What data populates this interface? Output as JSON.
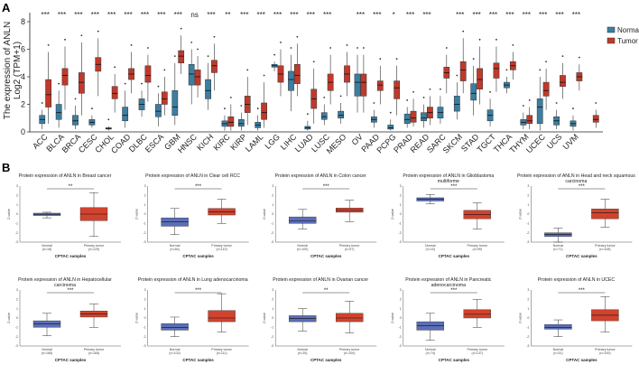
{
  "chart_data": [
    {
      "panel": "A",
      "type": "boxplot",
      "ylabel_line1": "The expression of ANLN",
      "ylabel_line2": "Log2 (TPM+1)",
      "ylim": [
        0,
        8
      ],
      "yticks": [
        0,
        2,
        4,
        6,
        8
      ],
      "legend": {
        "title": "",
        "position": "right",
        "items": [
          {
            "name": "Normal",
            "color": "#3b7ea1"
          },
          {
            "name": "Tumor",
            "color": "#c0392b"
          }
        ]
      },
      "groups": [
        {
          "cancer": "ACC",
          "sig": "***",
          "normal": [
            0.2,
            0.6,
            0.9,
            1.2,
            1.6
          ],
          "tumor": [
            0.6,
            1.8,
            2.7,
            3.8,
            5.8
          ]
        },
        {
          "cancer": "BLCA",
          "sig": "***",
          "normal": [
            0.3,
            0.9,
            1.4,
            2.0,
            3.0
          ],
          "tumor": [
            1.6,
            3.4,
            4.1,
            4.6,
            6.2
          ]
        },
        {
          "cancer": "BRCA",
          "sig": "***",
          "normal": [
            0.2,
            0.5,
            0.8,
            1.2,
            1.9
          ],
          "tumor": [
            1.2,
            2.8,
            3.6,
            4.3,
            6.5
          ]
        },
        {
          "cancer": "CESC",
          "sig": "***",
          "normal": [
            0.3,
            0.5,
            0.7,
            0.9,
            1.2
          ],
          "tumor": [
            2.6,
            4.4,
            4.9,
            5.4,
            6.8
          ]
        },
        {
          "cancer": "CHOL",
          "sig": "***",
          "normal": [
            0.1,
            0.2,
            0.25,
            0.3,
            0.4
          ],
          "tumor": [
            1.4,
            2.4,
            2.8,
            3.3,
            4.2
          ]
        },
        {
          "cancer": "COAD",
          "sig": "***",
          "normal": [
            0.3,
            0.8,
            1.2,
            1.8,
            3.0
          ],
          "tumor": [
            2.8,
            3.8,
            4.2,
            4.6,
            5.8
          ]
        },
        {
          "cancer": "DLBC",
          "sig": "***",
          "normal": [
            1.1,
            1.6,
            2.0,
            2.4,
            3.0
          ],
          "tumor": [
            2.2,
            3.6,
            4.1,
            4.8,
            5.6
          ]
        },
        {
          "cancer": "ESCA",
          "sig": "***",
          "normal": [
            0.4,
            1.1,
            1.5,
            2.0,
            2.8
          ],
          "tumor": [
            1.2,
            2.0,
            2.4,
            2.9,
            4.0
          ]
        },
        {
          "cancer": "GBM",
          "sig": "***",
          "normal": [
            0.5,
            1.2,
            1.8,
            3.0,
            5.0
          ],
          "tumor": [
            4.2,
            5.0,
            5.5,
            5.9,
            7.0
          ]
        },
        {
          "cancer": "HNSC",
          "sig": "ns",
          "normal": [
            2.0,
            3.4,
            4.2,
            4.9,
            6.0
          ],
          "tumor": [
            2.5,
            3.4,
            4.0,
            4.5,
            5.5
          ]
        },
        {
          "cancer": "KICH",
          "sig": "***",
          "normal": [
            1.6,
            2.4,
            3.0,
            3.8,
            5.0
          ],
          "tumor": [
            3.0,
            4.3,
            4.8,
            5.2,
            6.4
          ]
        },
        {
          "cancer": "KIRC",
          "sig": "**",
          "normal": [
            0.1,
            0.4,
            0.6,
            0.8,
            1.2
          ],
          "tumor": [
            0.1,
            0.4,
            0.7,
            1.1,
            2.0
          ]
        },
        {
          "cancer": "KIRP",
          "sig": "***",
          "normal": [
            0.1,
            0.4,
            0.6,
            0.9,
            1.4
          ],
          "tumor": [
            0.5,
            1.4,
            2.0,
            2.6,
            4.0
          ]
        },
        {
          "cancer": "LAML",
          "sig": "***",
          "normal": [
            0.1,
            0.3,
            0.5,
            0.7,
            1.2
          ],
          "tumor": [
            0.3,
            0.9,
            1.4,
            2.1,
            3.6
          ]
        },
        {
          "cancer": "LGG",
          "sig": "***",
          "normal": [
            4.4,
            4.7,
            4.8,
            4.9,
            5.1
          ],
          "tumor": [
            2.6,
            3.6,
            4.2,
            4.8,
            6.0
          ]
        },
        {
          "cancer": "LIHC",
          "sig": "***",
          "normal": [
            1.5,
            3.0,
            3.8,
            4.4,
            5.6
          ],
          "tumor": [
            2.6,
            3.5,
            4.1,
            4.9,
            6.4
          ]
        },
        {
          "cancer": "LUAD",
          "sig": "***",
          "normal": [
            0.1,
            0.2,
            0.3,
            0.4,
            0.8
          ],
          "tumor": [
            0.6,
            1.7,
            2.4,
            3.1,
            4.6
          ]
        },
        {
          "cancer": "LUSC",
          "sig": "***",
          "normal": [
            0.5,
            0.9,
            1.1,
            1.4,
            2.0
          ],
          "tumor": [
            2.0,
            3.0,
            3.6,
            4.2,
            5.6
          ]
        },
        {
          "cancer": "MESO",
          "sig": "",
          "normal": [
            0.6,
            1.0,
            1.2,
            1.5,
            2.1
          ],
          "tumor": [
            2.6,
            3.6,
            4.2,
            4.8,
            5.8
          ]
        },
        {
          "cancer": "OV",
          "sig": "***",
          "normal": [
            1.4,
            2.6,
            3.6,
            4.2,
            5.6
          ],
          "tumor": [
            1.4,
            2.6,
            3.6,
            4.2,
            5.6
          ]
        },
        {
          "cancer": "PAAD",
          "sig": "***",
          "normal": [
            0.3,
            0.7,
            0.9,
            1.1,
            1.6
          ],
          "tumor": [
            2.0,
            3.0,
            3.4,
            3.7,
            4.8
          ]
        },
        {
          "cancer": "PCPG",
          "sig": "*",
          "normal": [
            0.1,
            0.2,
            0.3,
            0.5,
            0.9
          ],
          "tumor": [
            1.2,
            2.4,
            3.2,
            3.7,
            4.8
          ]
        },
        {
          "cancer": "PRAD",
          "sig": "***",
          "normal": [
            0.3,
            0.6,
            0.9,
            1.3,
            1.8
          ],
          "tumor": [
            0.4,
            0.7,
            1.0,
            1.5,
            2.4
          ]
        },
        {
          "cancer": "READ",
          "sig": "***",
          "normal": [
            0.3,
            0.8,
            1.0,
            1.4,
            2.0
          ],
          "tumor": [
            0.5,
            1.0,
            1.4,
            1.8,
            2.6
          ]
        },
        {
          "cancer": "SARC",
          "sig": "",
          "normal": [
            0.6,
            1.0,
            1.4,
            1.8,
            2.6
          ],
          "tumor": [
            2.8,
            3.9,
            4.3,
            4.7,
            5.6
          ]
        },
        {
          "cancer": "SKCM",
          "sig": "***",
          "normal": [
            0.9,
            1.5,
            2.0,
            2.6,
            3.6
          ],
          "tumor": [
            2.8,
            3.7,
            4.5,
            5.1,
            6.8
          ]
        },
        {
          "cancer": "STAD",
          "sig": "***",
          "normal": [
            1.2,
            2.3,
            2.8,
            3.5,
            4.8
          ],
          "tumor": [
            2.0,
            3.1,
            3.8,
            4.6,
            6.2
          ]
        },
        {
          "cancer": "TGCT",
          "sig": "***",
          "normal": [
            0.4,
            0.8,
            1.2,
            1.6,
            2.4
          ],
          "tumor": [
            2.9,
            3.9,
            4.6,
            5.0,
            6.2
          ]
        },
        {
          "cancer": "THCA",
          "sig": "***",
          "normal": [
            2.8,
            3.2,
            3.4,
            3.6,
            4.0
          ],
          "tumor": [
            3.8,
            4.5,
            4.8,
            5.1,
            5.8
          ]
        },
        {
          "cancer": "THYM",
          "sig": "***",
          "normal": [
            0.2,
            0.5,
            0.7,
            0.9,
            1.4
          ],
          "tumor": [
            0.2,
            0.6,
            0.8,
            1.2,
            1.8
          ]
        },
        {
          "cancer": "UCEC",
          "sig": "***",
          "normal": [
            0.1,
            0.6,
            1.8,
            2.4,
            4.0
          ],
          "tumor": [
            1.6,
            2.6,
            3.0,
            3.6,
            4.6
          ]
        },
        {
          "cancer": "UCS",
          "sig": "***",
          "normal": [
            0.2,
            0.5,
            0.8,
            1.1,
            1.6
          ],
          "tumor": [
            2.4,
            3.3,
            3.6,
            4.1,
            5.0
          ]
        },
        {
          "cancer": "UVM",
          "sig": "***",
          "normal": [
            0.1,
            0.4,
            0.6,
            0.8,
            1.2
          ],
          "tumor": [
            3.0,
            3.7,
            4.0,
            4.3,
            4.9
          ]
        },
        {
          "cancer": "",
          "sig": "",
          "normal": null,
          "tumor": [
            0.3,
            0.7,
            0.9,
            1.2,
            1.6
          ]
        }
      ]
    },
    {
      "panel": "B",
      "type": "boxplot",
      "subplots": [
        {
          "title": "Protein expression of ANLN in Breast cancer",
          "sig": "**",
          "ylabel": "Z-value",
          "xlabel": "CPTAC samples",
          "ylim": [
            -3,
            3
          ],
          "yticks": [
            "3",
            "2",
            "1",
            "0",
            "-1",
            "-2",
            "-3"
          ],
          "normal_label": "Normal",
          "normal_n": "(n=18)",
          "tumor_label": "Primary tumor",
          "tumor_n": "(n=125)",
          "normal": [
            -0.4,
            -0.15,
            -0.02,
            0.1,
            0.2
          ],
          "tumor": [
            -2.4,
            -0.7,
            0.0,
            0.7,
            2.3
          ]
        },
        {
          "title": "Protein expression of ANLN in Clear cell RCC",
          "sig": "***",
          "ylabel": "Z-value",
          "xlabel": "CPTAC samples",
          "ylim": [
            -3,
            3
          ],
          "yticks": [
            "3",
            "2",
            "1",
            "0",
            "-1",
            "-2",
            "-3"
          ],
          "normal_label": "Normal",
          "normal_n": "(n=84)",
          "tumor_label": "Primary tumor",
          "tumor_n": "(n=110)",
          "normal": [
            -2.2,
            -1.3,
            -0.8,
            -0.4,
            0.6
          ],
          "tumor": [
            -1.0,
            -0.1,
            0.25,
            0.6,
            1.6
          ]
        },
        {
          "title": "Protein expression of ANLN in Colon cancer",
          "sig": "***",
          "ylabel": "Z-value",
          "xlabel": "CPTAC samples",
          "ylim": [
            -3,
            3
          ],
          "yticks": [
            "3",
            "2",
            "1",
            "0",
            "-1",
            "-2",
            "-3"
          ],
          "normal_label": "Normal",
          "normal_n": "(n=100)",
          "tumor_label": "Primary tumor",
          "tumor_n": "(n=97)",
          "normal": [
            -1.6,
            -1.0,
            -0.75,
            -0.3,
            0.5
          ],
          "tumor": [
            -0.8,
            0.2,
            0.4,
            0.65,
            1.5
          ]
        },
        {
          "title": "Protein expression of ANLN in Glioblastoma multiforme",
          "sig": "***",
          "ylabel": "Z-value",
          "xlabel": "CPTAC samples",
          "ylim": [
            -3,
            3
          ],
          "yticks": [
            "3",
            "2",
            "1",
            "0",
            "-1",
            "-2",
            "-3"
          ],
          "normal_label": "Normal",
          "normal_n": "(n=10)",
          "tumor_label": "Primary tumor",
          "tumor_n": "(n=99)",
          "normal": [
            1.1,
            1.4,
            1.6,
            1.75,
            2.1
          ],
          "tumor": [
            -1.6,
            -0.5,
            -0.05,
            0.4,
            1.2
          ]
        },
        {
          "title": "Protein expression of ANLN in Head and neck squamous carcinoma",
          "sig": "***",
          "ylabel": "Z-value",
          "xlabel": "CPTAC samples",
          "ylim": [
            -3,
            3
          ],
          "yticks": [
            "3",
            "2",
            "1",
            "0",
            "-1",
            "-2",
            "-3"
          ],
          "normal_label": "Normal",
          "normal_n": "(n=71)",
          "tumor_label": "Primary tumor",
          "tumor_n": "(n=108)",
          "normal": [
            -3.0,
            -2.4,
            -2.2,
            -2.0,
            -1.5
          ],
          "tumor": [
            -1.4,
            -0.5,
            0.15,
            0.55,
            1.6
          ]
        },
        {
          "title": "Protein expression of ANLN in Hepatocellular carcinoma",
          "sig": "***",
          "ylabel": "Z-value",
          "xlabel": "CPTAC samples",
          "ylim": [
            -3,
            3
          ],
          "yticks": [
            "3",
            "2",
            "1",
            "0",
            "-1",
            "-2",
            "-3"
          ],
          "normal_label": "Normal",
          "normal_n": "(n=165)",
          "tumor_label": "Primary tumor",
          "tumor_n": "(n=165)",
          "normal": [
            -1.9,
            -1.0,
            -0.65,
            -0.3,
            0.5
          ],
          "tumor": [
            -1.0,
            0.1,
            0.45,
            0.75,
            1.5
          ]
        },
        {
          "title": "Protein expression of ANLN in Lung adenocarcinoma",
          "sig": "***",
          "ylabel": "Z-value",
          "xlabel": "CPTAC samples",
          "ylim": [
            -3,
            3
          ],
          "yticks": [
            "3",
            "2",
            "1",
            "0",
            "-1",
            "-2",
            "-3"
          ],
          "normal_label": "Normal",
          "normal_n": "(n=102)",
          "tumor_label": "Primary tumor",
          "tumor_n": "(n=111)",
          "normal": [
            -2.0,
            -1.3,
            -1.0,
            -0.6,
            0.1
          ],
          "tumor": [
            -1.5,
            -0.4,
            0.0,
            0.8,
            2.6
          ]
        },
        {
          "title": "Protein expression of ANLN in Ovarian cancer",
          "sig": "**",
          "ylabel": "Z-value",
          "xlabel": "CPTAC samples",
          "ylim": [
            -3,
            3
          ],
          "yticks": [
            "3",
            "2",
            "1",
            "0",
            "-1",
            "-2",
            "-3"
          ],
          "normal_label": "Normal",
          "normal_n": "(n=25)",
          "tumor_label": "Primary tumor",
          "tumor_n": "(n=100)",
          "normal": [
            -1.4,
            -0.4,
            -0.05,
            0.25,
            1.0
          ],
          "tumor": [
            -1.6,
            -0.4,
            0.0,
            0.5,
            1.8
          ]
        },
        {
          "title": "Protein expression of ANLN in Pancreatic adenocarcinoma",
          "sig": "***",
          "ylabel": "Z-value",
          "xlabel": "CPTAC samples",
          "ylim": [
            -3,
            3
          ],
          "yticks": [
            "3",
            "2",
            "1",
            "0",
            "-1",
            "-2",
            "-3"
          ],
          "normal_label": "Normal",
          "normal_n": "(n=74)",
          "tumor_label": "Primary tumor",
          "tumor_n": "(n=137)",
          "normal": [
            -2.4,
            -1.3,
            -0.8,
            -0.4,
            0.5
          ],
          "tumor": [
            -1.0,
            0.0,
            0.4,
            0.9,
            2.0
          ]
        },
        {
          "title": "Protein expression of ANLN in UCEC",
          "sig": "***",
          "ylabel": "Z-value",
          "xlabel": "CPTAC samples",
          "ylim": [
            -3,
            3
          ],
          "yticks": [
            "3",
            "2",
            "1",
            "0",
            "-1",
            "-2",
            "-3"
          ],
          "normal_label": "Normal",
          "normal_n": "(n=31)",
          "tumor_label": "Primary tumor",
          "tumor_n": "(n=100)",
          "normal": [
            -2.0,
            -1.2,
            -1.0,
            -0.7,
            -0.2
          ],
          "tumor": [
            -1.5,
            -0.3,
            0.3,
            0.9,
            2.3
          ]
        }
      ]
    }
  ],
  "colors": {
    "normal_A": "#3b7ea1",
    "tumor_A": "#c0392b",
    "normal_B": "#5b6eb8",
    "tumor_B": "#d1432e",
    "axis": "#222222"
  }
}
